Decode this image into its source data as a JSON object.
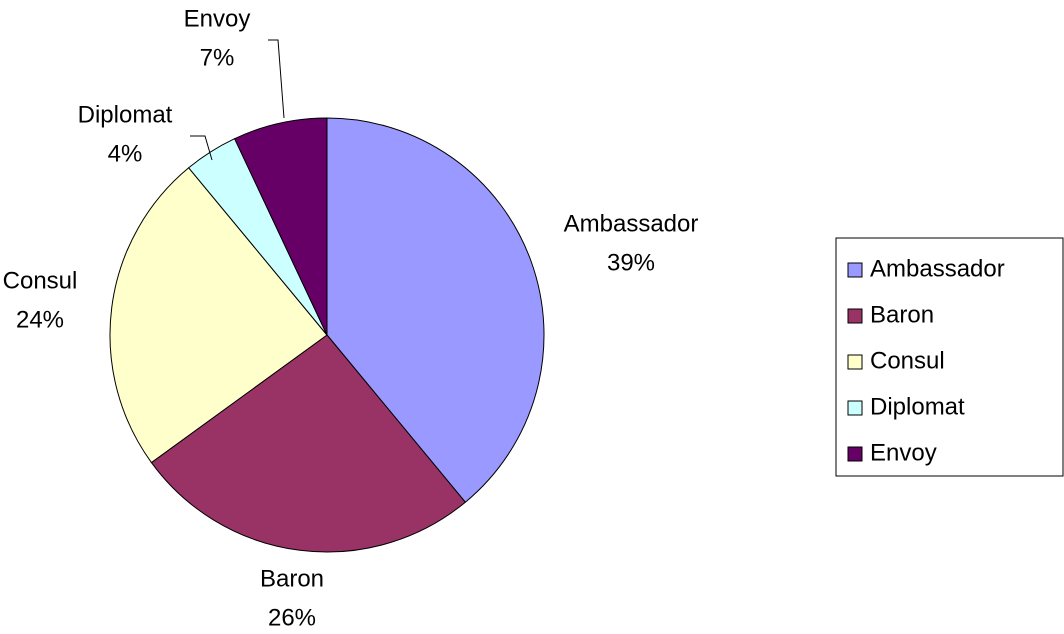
{
  "chart_data": {
    "type": "pie",
    "categories": [
      "Ambassador",
      "Baron",
      "Consul",
      "Diplomat",
      "Envoy"
    ],
    "values": [
      39,
      26,
      24,
      4,
      7
    ],
    "value_labels": [
      "39%",
      "26%",
      "24%",
      "4%",
      "7%"
    ],
    "colors": [
      "#9999ff",
      "#993366",
      "#ffffcc",
      "#ccffff",
      "#660066"
    ],
    "legend": "right"
  }
}
